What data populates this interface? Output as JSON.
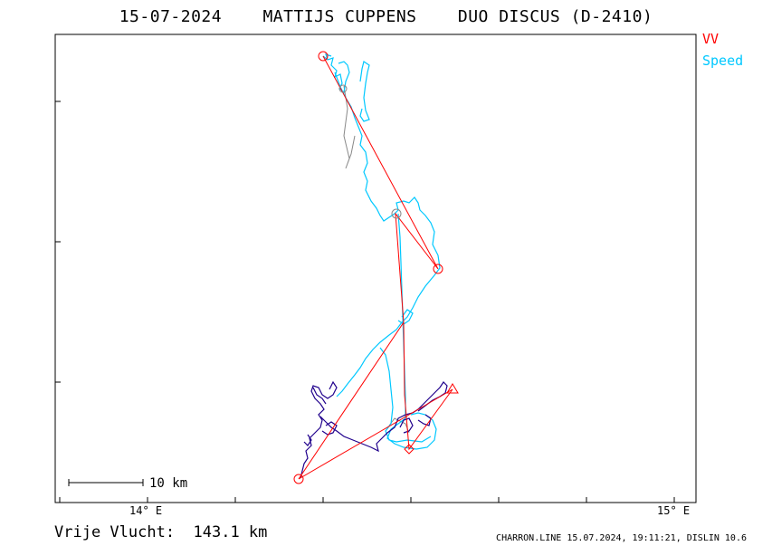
{
  "header": {
    "date": "15-07-2024",
    "pilot": "MATTIJS CUPPENS",
    "glider": "DUO DISCUS (D-2410)"
  },
  "legend": {
    "vv_label": "VV",
    "vv_color": "#ff0000",
    "speed_label": "Speed",
    "speed_color": "#00c8ff"
  },
  "axis": {
    "x_tick_left": "14° E",
    "x_tick_right": "15° E"
  },
  "scale_bar": {
    "label": "10 km"
  },
  "summary": {
    "text": "Vrije Vlucht:  143.1 km"
  },
  "footer": {
    "text": "CHARRON.LINE 15.07.2024, 19:11:21, DISLIN 10.6"
  },
  "colors": {
    "track_cyan": "#00c8ff",
    "track_navy": "#20008c",
    "task_red": "#ff0000",
    "gray": "#888888"
  }
}
